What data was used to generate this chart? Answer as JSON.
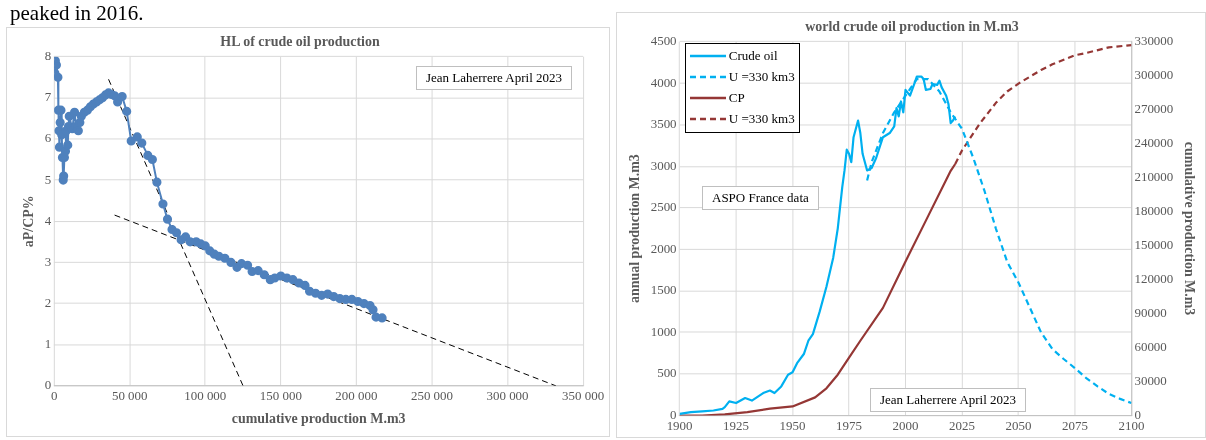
{
  "chart_data": [
    {
      "type": "line",
      "title": "HL of crude oil production",
      "xlabel": "cumulative production M.m3",
      "ylabel": "aP/CP%",
      "annotations": [
        "peaked in 2016.",
        "Jean Laherrere April 2023"
      ],
      "xlim": [
        0,
        350000
      ],
      "xticks": [
        0,
        {
          "value": 50000,
          "label": "50 000"
        },
        {
          "value": 100000,
          "label": "100 000"
        },
        {
          "value": 150000,
          "label": "150 000"
        },
        {
          "value": 200000,
          "label": "200 000"
        },
        {
          "value": 250000,
          "label": "250 000"
        },
        {
          "value": 300000,
          "label": "300 000"
        },
        {
          "value": 350000,
          "label": "350 000"
        }
      ],
      "ylim": [
        0,
        8
      ],
      "yticks": [
        0,
        1,
        2,
        3,
        4,
        5,
        6,
        7,
        8
      ],
      "grid": true,
      "marker": "circle",
      "series": [
        {
          "color": "#4f81bd",
          "x": [
            500,
            800,
            1500,
            2500,
            2800,
            3200,
            3500,
            4000,
            4500,
            5000,
            5500,
            6000,
            6300,
            6800,
            7500,
            8000,
            9000,
            9500,
            10000,
            12000,
            13500,
            14500,
            16000,
            17000,
            18000,
            20000,
            22000,
            24000,
            26000,
            28000,
            30000,
            32000,
            34000,
            36000,
            38000,
            40000,
            42000,
            45000,
            48000,
            51000,
            55000,
            58000,
            62000,
            65000,
            68000,
            72000,
            75000,
            78000,
            81000,
            84000,
            87000,
            90000,
            94000,
            97000,
            100000,
            103000,
            106000,
            109000,
            113000,
            117000,
            121000,
            124000,
            128000,
            131000,
            135000,
            139000,
            143000,
            146000,
            150000,
            154000,
            158000,
            162000,
            166000,
            169000,
            173000,
            177000,
            181000,
            185000,
            189000,
            193000,
            197000,
            201000,
            205000,
            209000,
            211000,
            213000,
            217000
          ],
          "values": [
            7.6,
            7.9,
            7.8,
            7.5,
            6.7,
            6.2,
            5.8,
            6.4,
            6.7,
            6.1,
            5.55,
            5.0,
            5.1,
            5.55,
            5.7,
            6.2,
            5.85,
            6.3,
            6.55,
            6.25,
            6.65,
            6.3,
            6.2,
            6.4,
            6.55,
            6.65,
            6.7,
            6.78,
            6.85,
            6.9,
            6.95,
            7.0,
            7.07,
            7.12,
            7.08,
            7.05,
            6.9,
            7.03,
            6.67,
            5.95,
            6.05,
            5.9,
            5.6,
            5.5,
            4.95,
            4.42,
            4.05,
            3.8,
            3.72,
            3.55,
            3.62,
            3.5,
            3.5,
            3.45,
            3.4,
            3.28,
            3.2,
            3.15,
            3.1,
            3.0,
            2.88,
            2.97,
            2.93,
            2.78,
            2.8,
            2.7,
            2.58,
            2.62,
            2.67,
            2.62,
            2.58,
            2.5,
            2.44,
            2.3,
            2.25,
            2.2,
            2.23,
            2.17,
            2.12,
            2.1,
            2.1,
            2.05,
            2.0,
            1.95,
            1.85,
            1.67,
            1.65
          ]
        },
        {
          "type": "line",
          "color": "#000000",
          "line_style": "dashed",
          "marker": "none",
          "x": [
            36000,
            125000
          ],
          "values": [
            7.45,
            0
          ]
        },
        {
          "type": "line",
          "color": "#000000",
          "line_style": "dashed",
          "marker": "none",
          "x": [
            40000,
            332000
          ],
          "values": [
            4.15,
            0
          ]
        }
      ]
    },
    {
      "type": "line",
      "title": "world crude oil production in M.m3",
      "ylabel": "annual production M.m3",
      "y2label": "cumulative production M.m3",
      "annotations": [
        "ASPO France data",
        "Jean Laherrere April 2023"
      ],
      "xlim": [
        1900,
        2100
      ],
      "xticks": [
        1900,
        1925,
        1950,
        1975,
        2000,
        2025,
        2050,
        2075,
        2100
      ],
      "ylim": [
        0,
        4500
      ],
      "yticks": [
        0,
        500,
        1000,
        1500,
        2000,
        2500,
        3000,
        3500,
        4000,
        4500
      ],
      "y2lim": [
        0,
        330000
      ],
      "y2ticks": [
        0,
        30000,
        60000,
        90000,
        120000,
        150000,
        180000,
        210000,
        240000,
        270000,
        300000,
        330000
      ],
      "grid": true,
      "legend": "top left",
      "series": [
        {
          "name": "Crude oil",
          "color": "#00b0f0",
          "line_style": "solid",
          "x": [
            1900,
            1905,
            1910,
            1915,
            1919,
            1920,
            1922,
            1925,
            1929,
            1932,
            1937,
            1940,
            1942,
            1945,
            1948,
            1950,
            1952,
            1955,
            1957,
            1959,
            1962,
            1965,
            1968,
            1970,
            1972,
            1973,
            1974,
            1975,
            1976,
            1977,
            1979,
            1980,
            1981,
            1983,
            1985,
            1987,
            1990,
            1993,
            1995,
            1996,
            1997,
            1998,
            1999,
            2000,
            2002,
            2004,
            2005,
            2007,
            2008,
            2009,
            2011,
            2012,
            2014,
            2015,
            2016,
            2018,
            2019,
            2020,
            2021,
            2022
          ],
          "values": [
            20,
            40,
            50,
            60,
            80,
            100,
            170,
            150,
            210,
            180,
            270,
            300,
            270,
            350,
            490,
            520,
            630,
            740,
            900,
            980,
            1250,
            1550,
            1900,
            2250,
            2750,
            2950,
            3200,
            3150,
            3050,
            3350,
            3550,
            3400,
            3150,
            2950,
            2980,
            3100,
            3350,
            3400,
            3480,
            3700,
            3600,
            3780,
            3650,
            3920,
            3850,
            4000,
            4080,
            4080,
            4050,
            3920,
            3930,
            3990,
            3980,
            4030,
            3950,
            3850,
            3750,
            3520,
            3550,
            3600
          ]
        },
        {
          "name": "U =330 km3",
          "color": "#00b0f0",
          "line_style": "dashed",
          "x": [
            1983,
            1985,
            1990,
            1995,
            2000,
            2005,
            2010,
            2015,
            2020,
            2025,
            2030,
            2035,
            2040,
            2045,
            2050,
            2055,
            2060,
            2065,
            2070,
            2075,
            2080,
            2085,
            2090,
            2095,
            2100
          ],
          "values": [
            2830,
            3050,
            3400,
            3650,
            3850,
            4050,
            4050,
            3900,
            3650,
            3450,
            3100,
            2700,
            2250,
            1850,
            1600,
            1300,
            1000,
            800,
            680,
            570,
            450,
            350,
            260,
            200,
            150
          ]
        },
        {
          "name": "CP",
          "color": "#953735",
          "line_style": "solid",
          "axis": "y2",
          "x": [
            1900,
            1910,
            1920,
            1930,
            1940,
            1950,
            1960,
            1965,
            1970,
            1975,
            1980,
            1990,
            2000,
            2010,
            2020,
            2022
          ],
          "values": [
            0,
            0,
            1000,
            3000,
            6000,
            8000,
            16000,
            24000,
            36000,
            51000,
            66000,
            95000,
            136000,
            176000,
            216000,
            222000
          ]
        },
        {
          "name": "U =330 km3",
          "color": "#953735",
          "line_style": "dashed",
          "axis": "y2",
          "x": [
            2022,
            2025,
            2033,
            2040,
            2045,
            2050,
            2060,
            2065,
            2070,
            2075,
            2080,
            2090,
            2100
          ],
          "values": [
            222000,
            234000,
            258000,
            276000,
            286000,
            293000,
            305000,
            310000,
            314000,
            318000,
            320000,
            325000,
            327000
          ]
        }
      ]
    }
  ]
}
